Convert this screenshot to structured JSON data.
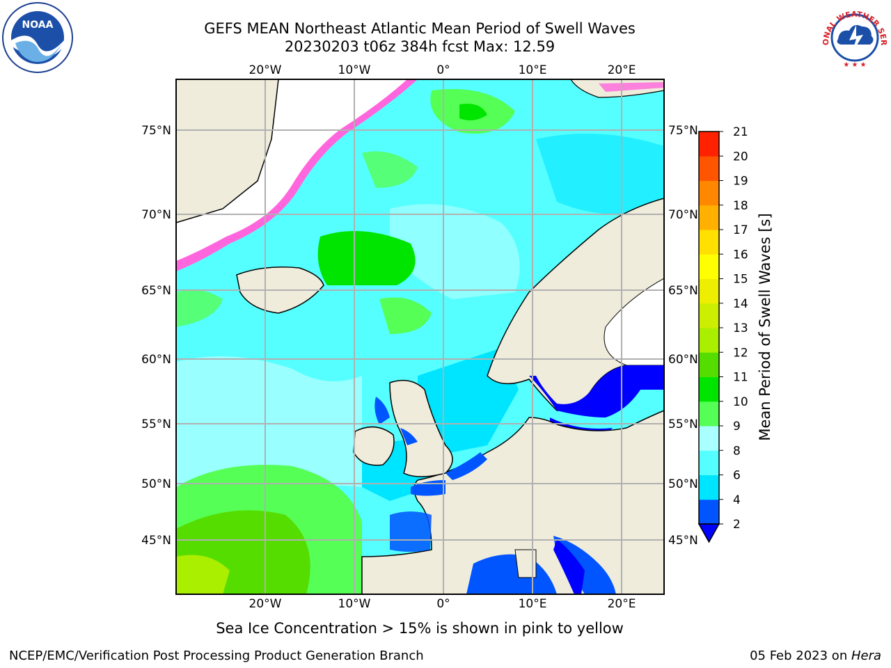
{
  "title": {
    "line1": "GEFS MEAN Northeast Atlantic Mean Period of Swell Waves",
    "line2": "20230203 t06z 384h fcst   Max: 12.59"
  },
  "logos": {
    "left": {
      "icon": "noaa-logo-icon",
      "text": "NOAA"
    },
    "right": {
      "icon": "nws-logo-icon",
      "text": "NATIONAL WEATHER SERVICE"
    }
  },
  "map": {
    "lon_labels": [
      "20°W",
      "10°W",
      "0°",
      "10°E",
      "20°E"
    ],
    "lat_labels": [
      "75°N",
      "70°N",
      "65°N",
      "60°N",
      "55°N",
      "50°N",
      "45°N"
    ],
    "colors": {
      "land": "#efecdc",
      "ice_free_white": "#ffffff",
      "grid": "#b0b0b0",
      "coast": "#000000"
    }
  },
  "colorbar": {
    "label": "Mean Period of Swell Waves [s]",
    "ticks": [
      "2",
      "4",
      "6",
      "8",
      "9",
      "10",
      "11",
      "12",
      "13",
      "14",
      "15",
      "16",
      "17",
      "18",
      "19",
      "20",
      "21"
    ],
    "colors": [
      "#0055ff",
      "#00e5ff",
      "#55ffff",
      "#aaffff",
      "#55ff55",
      "#00e500",
      "#55dd00",
      "#aaee00",
      "#ccee00",
      "#eeee00",
      "#ffff00",
      "#ffe000",
      "#ffb000",
      "#ff8800",
      "#ff5500",
      "#ff2200"
    ],
    "extend_color": "#0000ff"
  },
  "footer": {
    "note": "Sea Ice Concentration > 15% is shown in pink to yellow",
    "credit": "NCEP/EMC/Verification Post Processing Product Generation Branch",
    "date": "05 Feb 2023 on ",
    "host": "Hera"
  }
}
